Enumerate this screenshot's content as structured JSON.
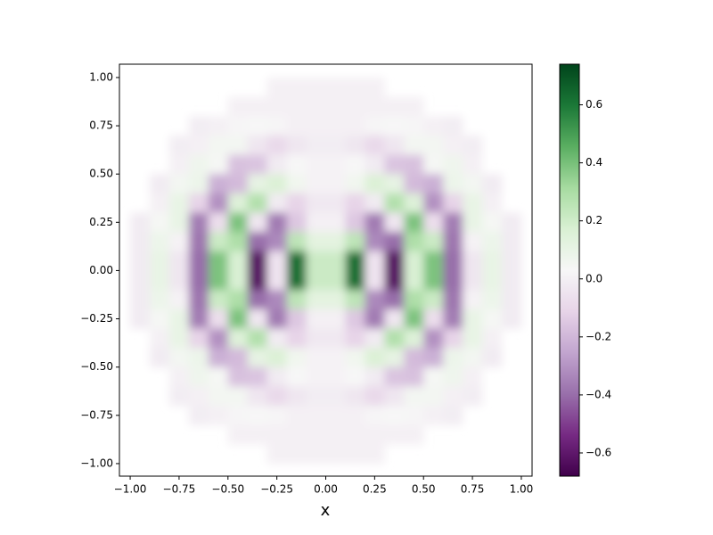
{
  "chart_data": {
    "type": "heatmap",
    "xlabel": "x",
    "x": [
      -0.95,
      -0.85,
      -0.75,
      -0.65,
      -0.55,
      -0.45,
      -0.35,
      -0.25,
      -0.15,
      -0.05,
      0.05,
      0.15,
      0.25,
      0.35,
      0.45,
      0.55,
      0.65,
      0.75,
      0.85,
      0.95
    ],
    "y": [
      0.95,
      0.85,
      0.75,
      0.65,
      0.55,
      0.45,
      0.35,
      0.25,
      0.15,
      0.05,
      -0.05,
      -0.15,
      -0.25,
      -0.35,
      -0.45,
      -0.55,
      -0.65,
      -0.75,
      -0.85,
      -0.95
    ],
    "values": [
      [
        null,
        null,
        null,
        null,
        null,
        null,
        null,
        0,
        0,
        0,
        0,
        0,
        0,
        null,
        null,
        null,
        null,
        null,
        null,
        null
      ],
      [
        null,
        null,
        null,
        null,
        null,
        0,
        0,
        0,
        0,
        0,
        0,
        0,
        0,
        0,
        0,
        null,
        null,
        null,
        null,
        null
      ],
      [
        null,
        null,
        null,
        -0.01,
        0,
        0.02,
        0.03,
        0.02,
        0,
        0,
        0,
        0,
        0.02,
        0.03,
        0.02,
        0,
        -0.01,
        null,
        null,
        null
      ],
      [
        null,
        null,
        -0.01,
        0,
        0.05,
        0.05,
        -0.04,
        -0.09,
        -0.04,
        -0.01,
        -0.01,
        -0.04,
        -0.09,
        -0.04,
        0.05,
        0.05,
        0,
        -0.01,
        null,
        null
      ],
      [
        null,
        null,
        0,
        0.07,
        0.04,
        -0.17,
        -0.16,
        -0.02,
        0.03,
        0.01,
        0.01,
        0.03,
        -0.02,
        -0.16,
        -0.17,
        0.04,
        0.07,
        0,
        null,
        null
      ],
      [
        null,
        -0.02,
        0.05,
        0.08,
        -0.22,
        -0.19,
        0.11,
        0.16,
        0.06,
        0.01,
        0.01,
        0.06,
        0.16,
        0.11,
        -0.19,
        -0.22,
        0.08,
        0.05,
        -0.02,
        null
      ],
      [
        null,
        0,
        0.1,
        -0.11,
        -0.31,
        0.15,
        0.28,
        -0.02,
        -0.11,
        -0.03,
        -0.03,
        -0.11,
        -0.02,
        0.28,
        0.15,
        -0.31,
        -0.11,
        0.1,
        0,
        null
      ],
      [
        -0.02,
        0.04,
        0.1,
        -0.36,
        -0.07,
        0.39,
        -0.04,
        -0.37,
        -0.15,
        0,
        0,
        -0.15,
        -0.37,
        -0.04,
        0.39,
        -0.07,
        -0.36,
        0.1,
        0.04,
        -0.02
      ],
      [
        -0.02,
        0.08,
        0.01,
        -0.38,
        0.21,
        0.29,
        -0.4,
        -0.33,
        0.25,
        0.12,
        0.12,
        0.25,
        -0.33,
        -0.4,
        0.29,
        0.21,
        -0.38,
        0.01,
        0.08,
        -0.02
      ],
      [
        -0.02,
        0.1,
        -0.04,
        -0.4,
        0.39,
        0.17,
        -0.62,
        -0.05,
        0.62,
        0.21,
        0.21,
        0.62,
        -0.05,
        -0.62,
        0.17,
        0.39,
        -0.4,
        -0.04,
        0.1,
        -0.02
      ],
      [
        -0.02,
        0.1,
        -0.04,
        -0.4,
        0.39,
        0.17,
        -0.62,
        -0.05,
        0.62,
        0.21,
        0.21,
        0.62,
        -0.05,
        -0.62,
        0.17,
        0.39,
        -0.4,
        -0.04,
        0.1,
        -0.02
      ],
      [
        -0.02,
        0.08,
        0.01,
        -0.38,
        0.21,
        0.29,
        -0.4,
        -0.33,
        0.25,
        0.12,
        0.12,
        0.25,
        -0.33,
        -0.4,
        0.29,
        0.21,
        -0.38,
        0.01,
        0.08,
        -0.02
      ],
      [
        -0.02,
        0.04,
        0.1,
        -0.36,
        -0.07,
        0.39,
        -0.04,
        -0.37,
        -0.15,
        0,
        0,
        -0.15,
        -0.37,
        -0.04,
        0.39,
        -0.07,
        -0.36,
        0.1,
        0.04,
        -0.02
      ],
      [
        null,
        0,
        0.1,
        -0.11,
        -0.31,
        0.15,
        0.28,
        -0.02,
        -0.11,
        -0.03,
        -0.03,
        -0.11,
        -0.02,
        0.28,
        0.15,
        -0.31,
        -0.11,
        0.1,
        0,
        null
      ],
      [
        null,
        -0.02,
        0.05,
        0.08,
        -0.22,
        -0.19,
        0.11,
        0.16,
        0.06,
        0.01,
        0.01,
        0.06,
        0.16,
        0.11,
        -0.19,
        -0.22,
        0.08,
        0.05,
        -0.02,
        null
      ],
      [
        null,
        null,
        0,
        0.07,
        0.04,
        -0.17,
        -0.16,
        -0.02,
        0.03,
        0.01,
        0.01,
        0.03,
        -0.02,
        -0.16,
        -0.17,
        0.04,
        0.07,
        0,
        null,
        null
      ],
      [
        null,
        null,
        -0.01,
        0,
        0.05,
        0.05,
        -0.04,
        -0.09,
        -0.04,
        -0.01,
        -0.01,
        -0.04,
        -0.09,
        -0.04,
        0.05,
        0.05,
        0,
        -0.01,
        null,
        null
      ],
      [
        null,
        null,
        null,
        -0.01,
        0,
        0.02,
        0.03,
        0.02,
        0,
        0,
        0,
        0,
        0.02,
        0.03,
        0.02,
        0,
        -0.01,
        null,
        null,
        null
      ],
      [
        null,
        null,
        null,
        null,
        null,
        0,
        0,
        0,
        0,
        0,
        0,
        0,
        0,
        0,
        0,
        null,
        null,
        null,
        null,
        null
      ],
      [
        null,
        null,
        null,
        null,
        null,
        null,
        null,
        0,
        0,
        0,
        0,
        0,
        0,
        null,
        null,
        null,
        null,
        null,
        null,
        null
      ]
    ],
    "colors": [
      "#40004b",
      "#762a83",
      "#9970ab",
      "#c2a5cf",
      "#e7d4e8",
      "#f7f7f7",
      "#d9f0d3",
      "#a6dba0",
      "#5aae61",
      "#1b7837",
      "#00441b"
    ],
    "clim": [
      -0.68,
      0.74
    ],
    "cticks": [
      {
        "value": -0.6,
        "label": "−0.6"
      },
      {
        "value": -0.4,
        "label": "−0.4"
      },
      {
        "value": -0.2,
        "label": "−0.2"
      },
      {
        "value": 0,
        "label": "0.0"
      },
      {
        "value": 0.2,
        "label": "0.2"
      },
      {
        "value": 0.4,
        "label": "0.4"
      },
      {
        "value": 0.6,
        "label": "0.6"
      }
    ],
    "xlim": [
      -1.055,
      1.055
    ],
    "ylim": [
      -1.065,
      1.069
    ],
    "xticks": [
      {
        "value": -1,
        "label": "−1.00"
      },
      {
        "value": -0.75,
        "label": "−0.75"
      },
      {
        "value": -0.5,
        "label": "−0.50"
      },
      {
        "value": -0.25,
        "label": "−0.25"
      },
      {
        "value": 0,
        "label": "0.00"
      },
      {
        "value": 0.25,
        "label": "0.25"
      },
      {
        "value": 0.5,
        "label": "0.50"
      },
      {
        "value": 0.75,
        "label": "0.75"
      },
      {
        "value": 1,
        "label": "1.00"
      }
    ],
    "yticks": [
      {
        "value": -1,
        "label": "−1.00"
      },
      {
        "value": -0.75,
        "label": "−0.75"
      },
      {
        "value": -0.5,
        "label": "−0.50"
      },
      {
        "value": -0.25,
        "label": "−0.25"
      },
      {
        "value": 0,
        "label": "0.00"
      },
      {
        "value": 0.25,
        "label": "0.25"
      },
      {
        "value": 0.5,
        "label": "0.50"
      },
      {
        "value": 0.75,
        "label": "0.75"
      },
      {
        "value": 1,
        "label": "1.00"
      }
    ]
  }
}
